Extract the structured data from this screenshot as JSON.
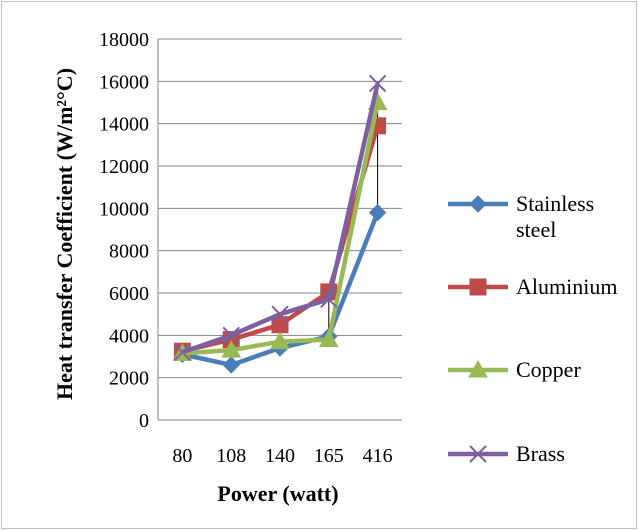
{
  "chart_data": {
    "type": "line",
    "title": "",
    "xlabel": "Power (watt)",
    "ylabel": "Heat transfer Coefficient (W/m²°C)",
    "categories": [
      "80",
      "108",
      "140",
      "165",
      "416"
    ],
    "ylim": [
      0,
      18000
    ],
    "yticks": [
      0,
      2000,
      4000,
      6000,
      8000,
      10000,
      12000,
      14000,
      16000,
      18000
    ],
    "grid": true,
    "legend": "right",
    "series": [
      {
        "name": "Stainless steel",
        "color": "#4A7EBB",
        "marker": "diamond",
        "values": [
          3100,
          2600,
          3400,
          3950,
          9800
        ]
      },
      {
        "name": "Aluminium",
        "color": "#BE4B48",
        "marker": "square",
        "values": [
          3250,
          3800,
          4500,
          6050,
          13900
        ]
      },
      {
        "name": "Copper",
        "color": "#98B954",
        "marker": "triangle",
        "values": [
          3150,
          3300,
          3700,
          3800,
          15000
        ]
      },
      {
        "name": "Brass",
        "color": "#7D60A0",
        "marker": "x",
        "values": [
          3200,
          4000,
          5000,
          5700,
          15900
        ]
      }
    ],
    "legend_lines": [
      [
        "Stainless",
        "steel"
      ],
      [
        "Aluminium"
      ],
      [
        "Copper"
      ],
      [
        "Brass"
      ]
    ]
  }
}
